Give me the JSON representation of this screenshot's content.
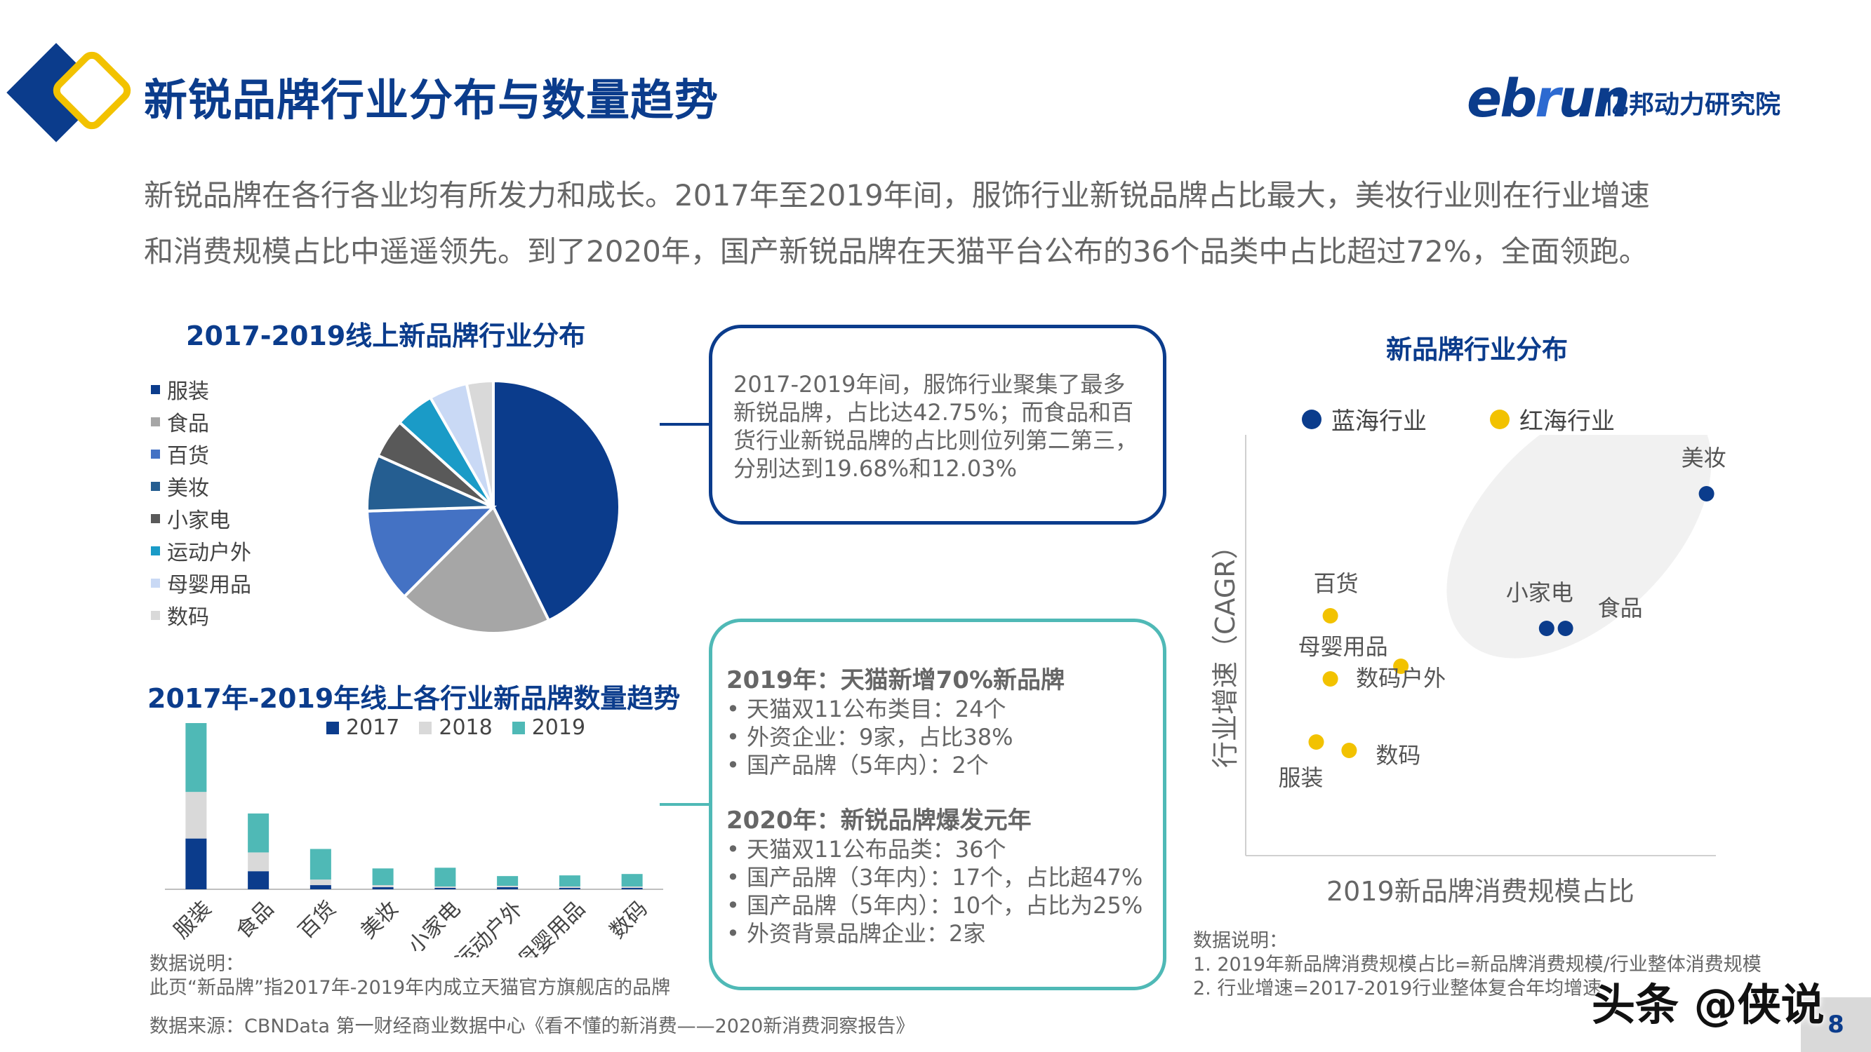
{
  "header": {
    "title": "新锐品牌行业分布与数量趋势",
    "logo_en_a": "eb",
    "logo_en_b": "r",
    "logo_en_c": "un",
    "logo_cn": "亿邦动力研究院"
  },
  "intro": {
    "line1": "新锐品牌在各行各业均有所发力和成长。2017年至2019年间，服饰行业新锐品牌占比最大，美妆行业则在行业增速",
    "line2": "和消费规模占比中遥遥领先。到了2020年，国产新锐品牌在天猫平台公布的36个品类中占比超过72%，全面领跑。"
  },
  "box1": {
    "lines": [
      "2017-2019年间，服饰行业聚集了最多",
      "新锐品牌，占比达42.75%；而食品和百",
      "货行业新锐品牌的占比则位列第二第三，",
      "分别达到19.68%和12.03%"
    ]
  },
  "box2": {
    "head1": "2019年：天猫新增70%新品牌",
    "bullets1": [
      "• 天猫双11公布类目：24个",
      "• 外资企业：9家，占比38%",
      "• 国产品牌（5年内）：2个"
    ],
    "head2": "2020年：新锐品牌爆发元年",
    "bullets2": [
      "• 天猫双11公布品类：36个",
      "• 国产品牌（3年内）：17个，占比超47%",
      "• 国产品牌（5年内）：10个，占比为25%",
      "• 外资背景品牌企业：2家"
    ]
  },
  "notes": {
    "left_note_title": "数据说明：",
    "left_note_body": "此页“新品牌”指2017年-2019年内成立天猫官方旗舰店的品牌",
    "source": "数据来源：CBNData 第一财经商业数据中心《看不懂的新消费——2020新消费洞察报告》",
    "right_note_title": "数据说明：",
    "right_note_1": "1.   2019年新品牌消费规模占比=新品牌消费规模/行业整体消费规模",
    "right_note_2": "2.   行业增速=2017-2019行业整体复合年均增速"
  },
  "page_number": "8",
  "watermark": "头条 @侠说",
  "chart_data": [
    {
      "type": "pie",
      "title": "2017-2019线上新品牌行业分布",
      "categories": [
        "服装",
        "食品",
        "百货",
        "美妆",
        "小家电",
        "运动户外",
        "母婴用品",
        "数码"
      ],
      "values": [
        42.75,
        19.68,
        12.03,
        7.2,
        5.0,
        5.0,
        4.9,
        3.4
      ],
      "colors": [
        "#0b3c8c",
        "#a6a6a6",
        "#4472c4",
        "#255e91",
        "#595959",
        "#1a9bc7",
        "#c9d9f5",
        "#d9d9d9"
      ],
      "legend": "left"
    },
    {
      "type": "bar",
      "stacked": true,
      "title": "2017年-2019年线上各行业新品牌数量趋势",
      "categories": [
        "服装",
        "食品",
        "百货",
        "美妆",
        "小家电",
        "运动户外",
        "母婴用品",
        "数码"
      ],
      "series": [
        {
          "name": "2017",
          "values": [
            73,
            26,
            6,
            3,
            2,
            3,
            2,
            2
          ],
          "color": "#0b3c8c"
        },
        {
          "name": "2018",
          "values": [
            67,
            27,
            8,
            3,
            2,
            2,
            2,
            2
          ],
          "color": "#d9d9d9"
        },
        {
          "name": "2019",
          "values": [
            99,
            56,
            44,
            24,
            27,
            14,
            16,
            18
          ],
          "color": "#4fb9b6"
        }
      ],
      "ylim": [
        0,
        240
      ],
      "legend": "top"
    },
    {
      "type": "scatter",
      "title": "新品牌行业分布",
      "xlabel": "2019新品牌消费规模占比",
      "ylabel": "行业增速（CAGR）",
      "series": [
        {
          "name": "蓝海行业",
          "color": "#0b3c8c",
          "points": [
            {
              "label": "美妆",
              "x": 0.98,
              "y": 0.86
            },
            {
              "label": "小家电",
              "x": 0.64,
              "y": 0.54
            },
            {
              "label": "食品",
              "x": 0.68,
              "y": 0.54
            }
          ]
        },
        {
          "name": "红海行业",
          "color": "#f2c200",
          "points": [
            {
              "label": "百货",
              "x": 0.18,
              "y": 0.57
            },
            {
              "label": "母婴用品",
              "x": 0.18,
              "y": 0.42
            },
            {
              "label": "数码户外",
              "x": 0.33,
              "y": 0.45
            },
            {
              "label": "数码",
              "x": 0.22,
              "y": 0.25
            },
            {
              "label": "服装",
              "x": 0.15,
              "y": 0.27
            }
          ]
        }
      ],
      "xlim": [
        0,
        1
      ],
      "ylim": [
        0,
        1
      ],
      "legend": "top"
    }
  ]
}
